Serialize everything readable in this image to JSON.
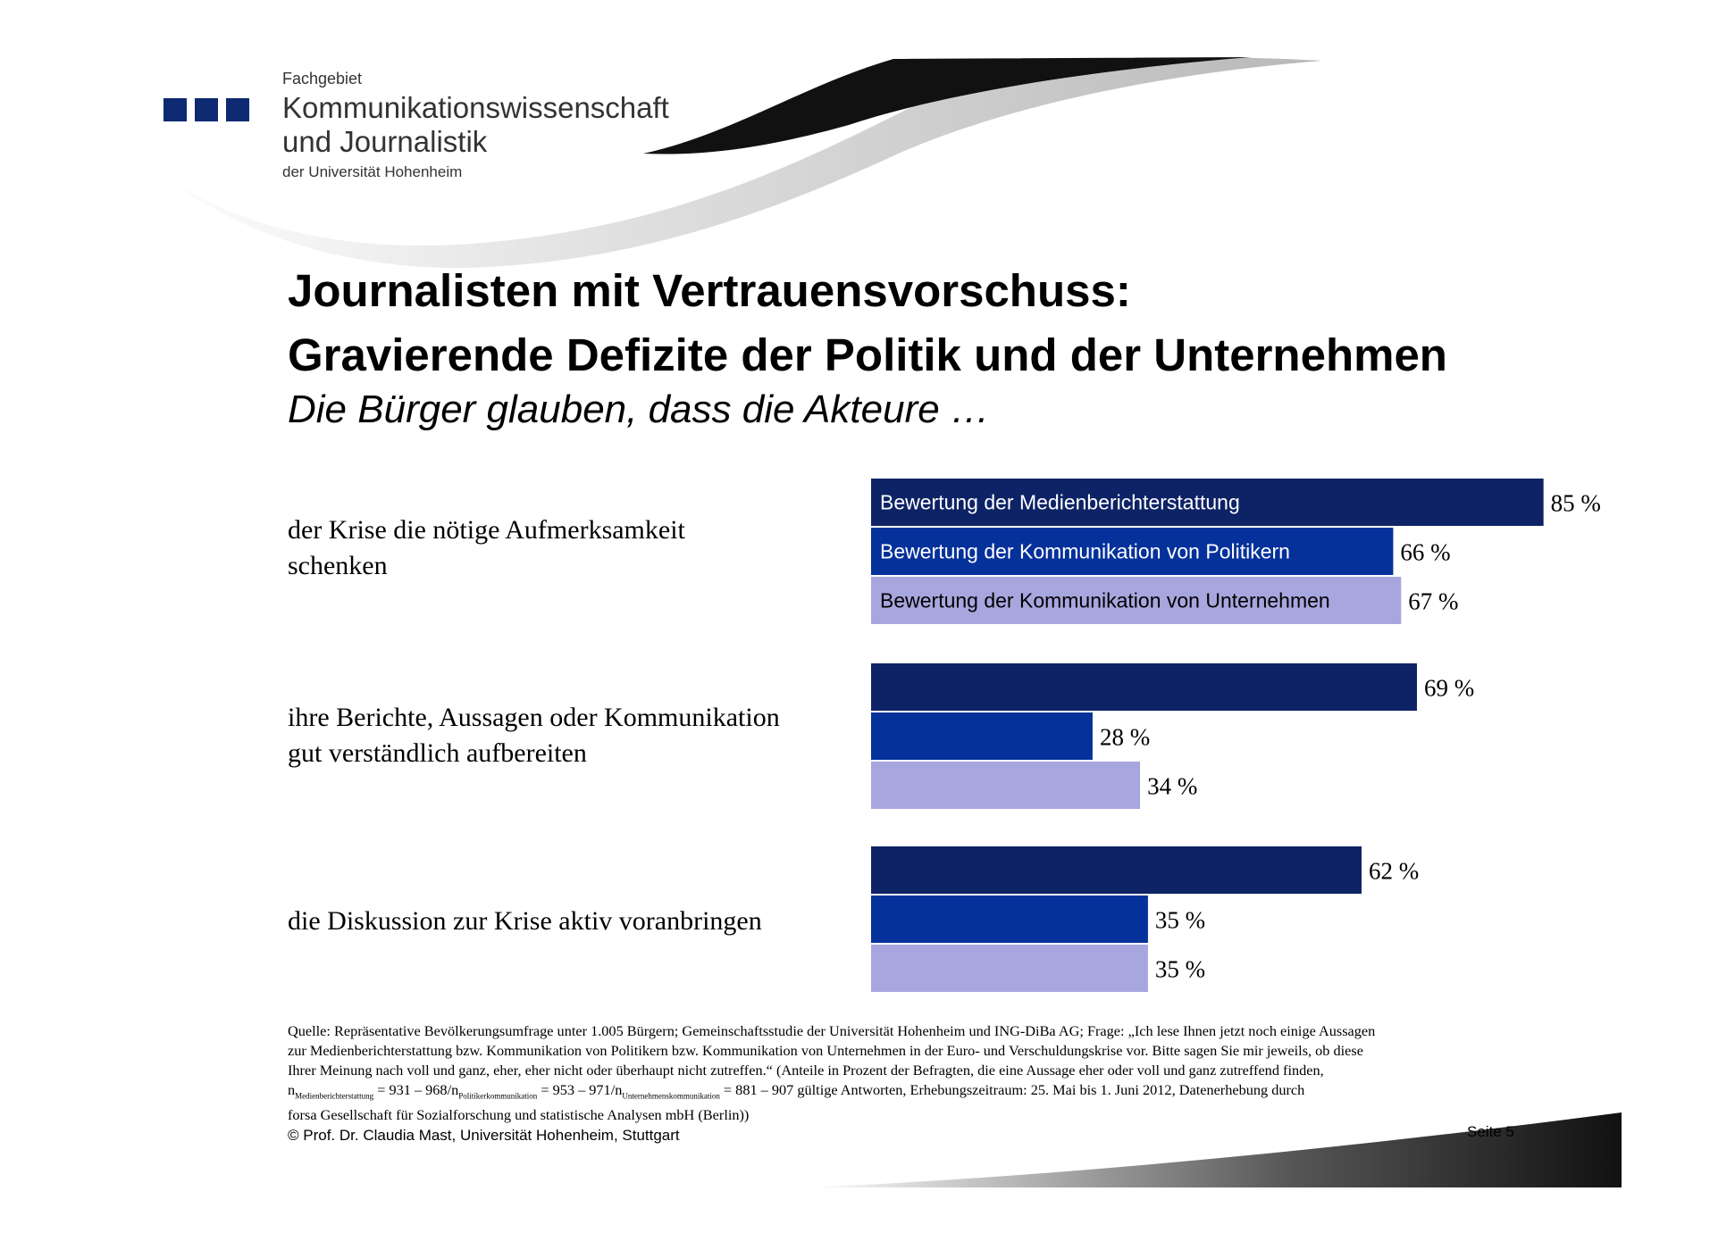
{
  "header": {
    "institute_small": "Fachgebiet",
    "institute_line1": "Kommunikationswissenschaft",
    "institute_line2": "und Journalistik",
    "institute_sub": "der Universität Hohenheim"
  },
  "slide": {
    "title_line1": "Journalisten mit Vertrauensvorschuss:",
    "title_line2": "Gravierende Defizite der Politik und der Unternehmen",
    "subtitle": "Die Bürger glauben, dass die Akteure …",
    "questions": [
      {
        "line1": "der Krise die nötige Aufmerksamkeit",
        "line2": "schenken"
      },
      {
        "line1": "ihre Berichte, Aussagen oder Kommunikation",
        "line2": "gut verständlich aufbereiten"
      },
      {
        "line1": "die Diskussion zur Krise aktiv voranbringen",
        "line2": ""
      }
    ]
  },
  "chart_data": {
    "type": "bar",
    "orientation": "horizontal",
    "unit": "%",
    "categories": [
      "der Krise die nötige Aufmerksamkeit schenken",
      "ihre Berichte, Aussagen oder Kommunikation gut verständlich aufbereiten",
      "die Diskussion zur Krise aktiv voranbringen"
    ],
    "series": [
      {
        "name": "Bewertung der Medienberichterstattung",
        "color": "#0e2366",
        "label_color": "#ffffff",
        "values": [
          85,
          69,
          62
        ],
        "labels": [
          "85 %",
          "69 %",
          "62 %"
        ]
      },
      {
        "name": "Bewertung der Kommunikation von Politikern",
        "color": "#05319b",
        "label_color": "#ffffff",
        "values": [
          66,
          28,
          35
        ],
        "labels": [
          "66 %",
          "28 %",
          "35 %"
        ]
      },
      {
        "name": "Bewertung der Kommunikation von Unternehmen",
        "color": "#a8a6de",
        "label_color": "#000000",
        "values": [
          67,
          34,
          35
        ],
        "labels": [
          "67 %",
          "34 %",
          "35 %"
        ]
      }
    ]
  },
  "footer": {
    "source_lines": [
      "Quelle: Repräsentative Bevölkerungsumfrage unter 1.005 Bürgern; Gemeinschaftsstudie der Universität Hohenheim und ING-DiBa AG; Frage: „Ich lese Ihnen jetzt noch einige Aussagen",
      "zur Medienberichterstattung bzw. Kommunikation von Politikern bzw. Kommunikation von Unternehmen in der Euro- und Verschuldungskrise vor. Bitte sagen Sie mir jeweils, ob diese",
      "Ihrer Meinung nach voll und ganz, eher, eher nicht oder überhaupt nicht zutreffen.“ (Anteile in Prozent der Befragten, die eine Aussage eher oder voll und ganz zutreffend finden,"
    ],
    "n_line": {
      "n": "n",
      "sub1": "Medienberichterstattung",
      "part1": " = 931 – 968/n",
      "sub2": "Politikerkommunikation",
      "part2": " = 953 – 971/n",
      "sub3": "Unternehmenskommunikation",
      "part3": " = 881 – 907 gültige Antworten, Erhebungszeitraum: 25. Mai bis 1. Juni 2012, Datenerhebung durch"
    },
    "source_last": "forsa Gesellschaft für Sozialforschung und statistische Analysen mbH (Berlin))",
    "copyright": "© Prof. Dr. Claudia Mast, Universität Hohenheim, Stuttgart",
    "page": "Seite  5"
  }
}
